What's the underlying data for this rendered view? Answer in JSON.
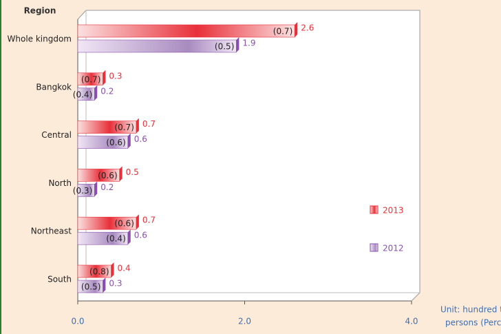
{
  "chart_data": {
    "type": "bar",
    "y_axis_label": "Region",
    "categories": [
      "Whole kingdom",
      "Bangkok",
      "Central",
      "North",
      "Northeast",
      "South"
    ],
    "series": [
      {
        "name": "2013",
        "color": "#e8303a",
        "values": [
          2.6,
          0.3,
          0.7,
          0.5,
          0.7,
          0.4
        ],
        "percent_labels": [
          "(0.7)",
          "(0.7)",
          "(0.7)",
          "(0.6)",
          "(0.6)",
          "(0.8)"
        ]
      },
      {
        "name": "2012",
        "color": "#8a4fae",
        "values": [
          1.9,
          0.2,
          0.6,
          0.2,
          0.6,
          0.3
        ],
        "percent_labels": [
          "(0.5)",
          "(0.4)",
          "(0.6)",
          "(0.3)",
          "(0.4)",
          "(0.5)"
        ]
      }
    ],
    "xlim": [
      0,
      4
    ],
    "xticks": [
      {
        "value": 0,
        "label": "0.0"
      },
      {
        "value": 2,
        "label": "2.0"
      },
      {
        "value": 4,
        "label": "4.0"
      }
    ],
    "unit_note": [
      "Unit: hundred thousand",
      "persons (Percent)"
    ],
    "legend_position": "right"
  }
}
